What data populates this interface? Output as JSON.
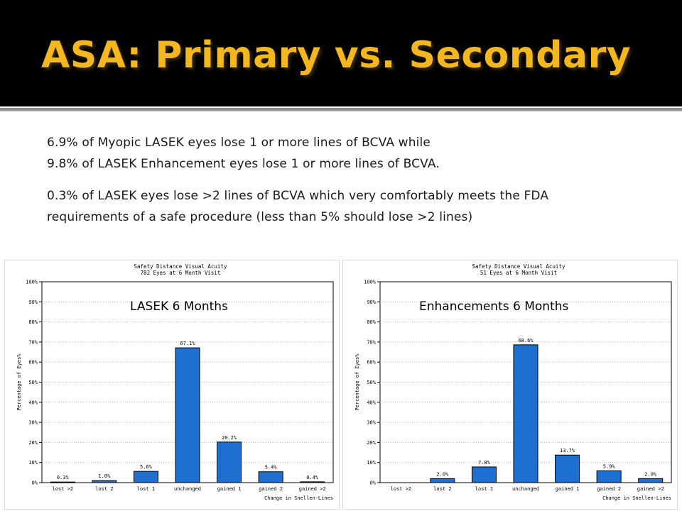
{
  "slide": {
    "title": "ASA: Primary vs. Secondary",
    "lines": [
      "6.9% of Myopic LASEK eyes lose 1 or more lines of BCVA while",
      "9.8% of LASEK Enhancement eyes lose 1 or more lines of BCVA.",
      "0.3% of LASEK eyes lose >2 lines of BCVA which very comfortably meets the FDA",
      "requirements of a safe procedure (less than 5% should lose >2 lines)"
    ],
    "colors": {
      "header_bg": "#000000",
      "title": "#f3b820",
      "bar": "#1f6fd0"
    }
  },
  "chart_data": [
    {
      "type": "bar",
      "title": "Safety Distance Visual Acuity",
      "subtitle": "782 Eyes at 6 Month Visit",
      "overlay_label": "LASEK 6 Months",
      "xlabel": "Change in Snellen-Lines",
      "ylabel": "Percentage of Eyes%",
      "ylim": [
        0,
        100
      ],
      "yticks": [
        "0%",
        "10%",
        "20%",
        "30%",
        "40%",
        "50%",
        "60%",
        "70%",
        "80%",
        "90%",
        "100%"
      ],
      "categories": [
        "lost >2",
        "lost 2",
        "lost 1",
        "unchanged",
        "gained 1",
        "gained 2",
        "gained >2"
      ],
      "values": [
        0.3,
        1.0,
        5.6,
        67.1,
        20.2,
        5.4,
        0.4
      ],
      "data_labels": [
        "0.3%",
        "1.0%",
        "5.6%",
        "67.1%",
        "20.2%",
        "5.4%",
        "0.4%"
      ]
    },
    {
      "type": "bar",
      "title": "Safety Distance Visual Acuity",
      "subtitle": "51 Eyes at 6 Month Visit",
      "overlay_label": "Enhancements 6 Months",
      "xlabel": "Change in Snellen-Lines",
      "ylabel": "Percentage of Eyes%",
      "ylim": [
        0,
        100
      ],
      "yticks": [
        "0%",
        "10%",
        "20%",
        "30%",
        "40%",
        "50%",
        "60%",
        "70%",
        "80%",
        "90%",
        "100%"
      ],
      "categories": [
        "lost >2",
        "lost 2",
        "lost 1",
        "unchanged",
        "gained 1",
        "gained 2",
        "gained >2"
      ],
      "values": [
        0,
        2.0,
        7.8,
        68.6,
        13.7,
        5.9,
        2.0
      ],
      "data_labels": [
        "",
        "2.0%",
        "7.8%",
        "68.6%",
        "13.7%",
        "5.9%",
        "2.0%"
      ]
    }
  ]
}
